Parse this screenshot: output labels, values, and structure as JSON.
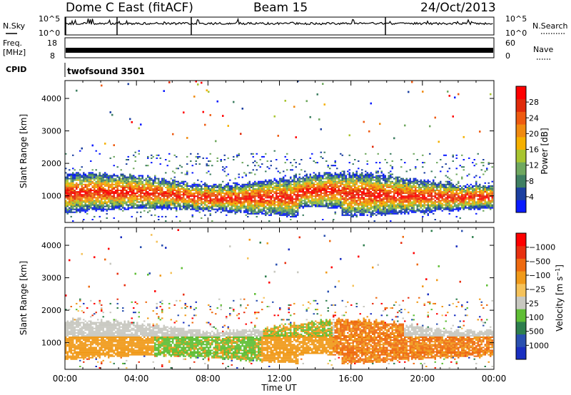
{
  "header": {
    "station": "Dome C East (fitACF)",
    "beam": "Beam 15",
    "date": "24/Oct/2013"
  },
  "noise_panel": {
    "left_label": "N.Sky",
    "left_ticks": [
      "10^5",
      "10^0"
    ],
    "right_ticks": [
      "10^5",
      "10^0"
    ],
    "right_label": "N.Search"
  },
  "freq_panel": {
    "left_label_1": "Freq.",
    "left_label_2": "[MHz]",
    "left_ticks": [
      "18",
      "8"
    ],
    "right_ticks": [
      "60",
      "0"
    ],
    "right_label": "Nave"
  },
  "cpid": {
    "label": "CPID",
    "value": "twofsound 3501"
  },
  "chart_data": [
    {
      "type": "heatmap",
      "name": "power",
      "xlabel": "",
      "ylabel": "Slant Range [km]",
      "x_ticks": [
        "00:00",
        "04:00",
        "08:00",
        "12:00",
        "16:00",
        "20:00",
        "00:00"
      ],
      "y_ticks": [
        1000,
        2000,
        3000,
        4000
      ],
      "ylim": [
        180,
        4550
      ],
      "xlim_hours": [
        0,
        24
      ],
      "colorbar": {
        "label": "Power [dB]",
        "tick_labels": [
          "4",
          "8",
          "12",
          "16",
          "20",
          "24",
          "28"
        ],
        "colors": [
          "#0a1bff",
          "#1b3fa0",
          "#3f7f62",
          "#6fa85f",
          "#a8c530",
          "#f5b000",
          "#f08a10",
          "#ee5a10",
          "#e02a0a",
          "#ff0000"
        ]
      },
      "band_description": "echo band ~400-1700 km, strongest 500-1400 km"
    },
    {
      "type": "heatmap",
      "name": "velocity",
      "xlabel": "Time UT",
      "ylabel": "Slant Range [km]",
      "x_ticks": [
        "00:00",
        "04:00",
        "08:00",
        "12:00",
        "16:00",
        "20:00",
        "00:00"
      ],
      "y_ticks": [
        1000,
        2000,
        3000,
        4000
      ],
      "ylim": [
        180,
        4550
      ],
      "xlim_hours": [
        0,
        24
      ],
      "colorbar": {
        "label": "Velocity [m s^-1]",
        "tick_labels": [
          "1000",
          "500",
          "100",
          "25",
          "−25",
          "−100",
          "−500",
          "−1000"
        ],
        "colors": [
          "#1a2fc0",
          "#2a50b0",
          "#2e7f4e",
          "#5fbe35",
          "#c8c8c0",
          "#f5c25a",
          "#f09a1a",
          "#ee6a10",
          "#e83010",
          "#ff0000"
        ]
      }
    }
  ],
  "colors": {
    "ground_scatter": "#bdbdbd",
    "background": "#ffffff"
  }
}
